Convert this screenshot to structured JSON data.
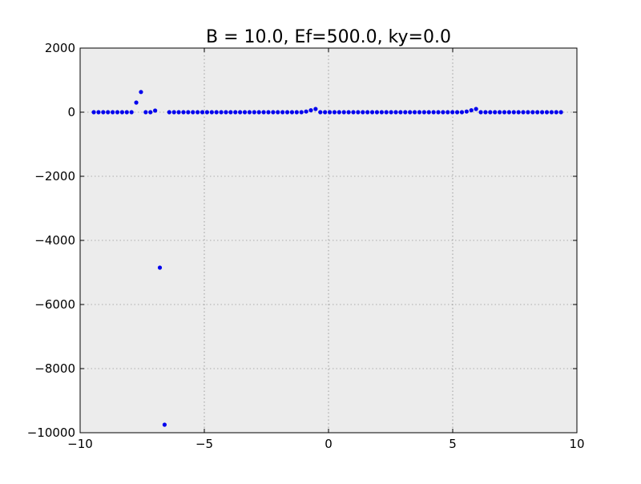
{
  "chart_data": {
    "type": "scatter",
    "title": "B = 10.0, Ef=500.0, ky=0.0",
    "xlabel": "",
    "ylabel": "",
    "xlim": [
      -10,
      10
    ],
    "ylim": [
      -10000,
      2000
    ],
    "x_ticks": [
      -10,
      -5,
      0,
      5,
      10
    ],
    "x_tick_labels": [
      "−10",
      "−5",
      "0",
      "5",
      "10"
    ],
    "y_ticks": [
      2000,
      0,
      -2000,
      -4000,
      -6000,
      -8000,
      -10000
    ],
    "y_tick_labels": [
      "2000",
      "0",
      "−2000",
      "−4000",
      "−6000",
      "−8000",
      "−10000"
    ],
    "grid": true,
    "background": "#ececec",
    "marker_color": "#0000ee",
    "series": [
      {
        "x": [
          -9.45,
          -9.26,
          -9.07,
          -8.88,
          -8.69,
          -8.5,
          -8.31,
          -8.12,
          -7.93,
          -7.74,
          -7.55,
          -7.36,
          -7.17,
          -6.98,
          -6.79,
          -6.6,
          -6.41,
          -6.22,
          -6.03,
          -5.84,
          -5.65,
          -5.46,
          -5.27,
          -5.08,
          -4.89,
          -4.7,
          -4.51,
          -4.32,
          -4.13,
          -3.94,
          -3.75,
          -3.56,
          -3.37,
          -3.18,
          -2.99,
          -2.8,
          -2.61,
          -2.42,
          -2.23,
          -2.04,
          -1.85,
          -1.66,
          -1.47,
          -1.28,
          -1.09,
          -0.9,
          -0.71,
          -0.52,
          -0.33,
          -0.14,
          0.05,
          0.24,
          0.43,
          0.62,
          0.81,
          1.0,
          1.19,
          1.38,
          1.57,
          1.76,
          1.95,
          2.14,
          2.33,
          2.52,
          2.71,
          2.9,
          3.09,
          3.28,
          3.47,
          3.66,
          3.85,
          4.04,
          4.23,
          4.42,
          4.61,
          4.8,
          4.99,
          5.18,
          5.37,
          5.56,
          5.75,
          5.94,
          6.13,
          6.32,
          6.51,
          6.7,
          6.89,
          7.08,
          7.27,
          7.46,
          7.65,
          7.84,
          8.03,
          8.22,
          8.41,
          8.6,
          8.79,
          8.98,
          9.17,
          9.36
        ],
        "y": [
          0,
          0,
          0,
          0,
          0,
          0,
          0,
          0,
          0,
          300,
          630,
          0,
          0,
          50,
          -4850,
          -9750,
          0,
          0,
          0,
          0,
          0,
          0,
          0,
          0,
          0,
          0,
          0,
          0,
          0,
          0,
          0,
          0,
          0,
          0,
          0,
          0,
          0,
          0,
          0,
          0,
          0,
          0,
          0,
          0,
          0,
          20,
          60,
          100,
          0,
          0,
          0,
          0,
          0,
          0,
          0,
          0,
          0,
          0,
          0,
          0,
          0,
          0,
          0,
          0,
          0,
          0,
          0,
          0,
          0,
          0,
          0,
          0,
          0,
          0,
          0,
          0,
          0,
          0,
          0,
          20,
          60,
          100,
          0,
          0,
          0,
          0,
          0,
          0,
          0,
          0,
          0,
          0,
          0,
          0,
          0,
          0,
          0,
          0,
          0,
          0
        ]
      }
    ]
  }
}
